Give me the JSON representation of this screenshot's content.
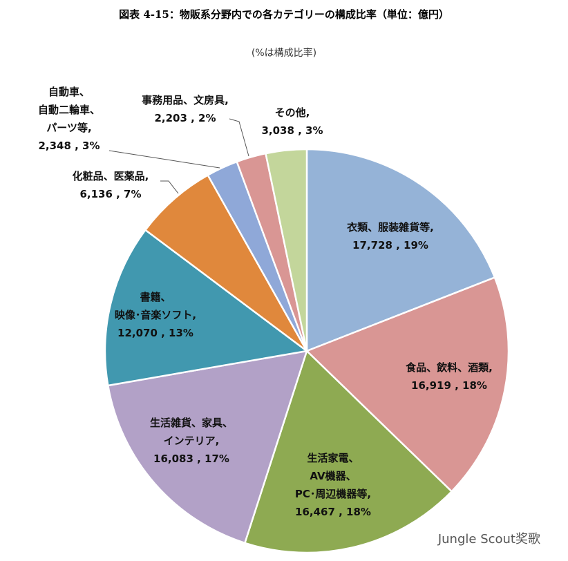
{
  "chart_data": {
    "type": "pie",
    "title": "図表 4-15：物販系分野内での各カテゴリーの構成比率（単位：億円）",
    "subtitle": "(%は構成比率)",
    "watermark": "Jungle Scout奖歌",
    "categories": [
      "衣類、服装雑貨等,",
      "食品、飲料、酒類,",
      "生活家電、\nAV機器、\nPC･周辺機器等,",
      "生活雑貨、家具、\nインテリア,",
      "書籍、\n映像･音楽ソフト,",
      "化粧品、医薬品,",
      "自動車、\n自動二輪車、\nパーツ等,",
      "事務用品、文房具,",
      "その他,"
    ],
    "values": [
      17728,
      16919,
      16467,
      16083,
      12070,
      6136,
      2348,
      2203,
      3038
    ],
    "value_labels": [
      "17,728 , 19%",
      "16,919 , 18%",
      "16,467 , 18%",
      "16,083 , 17%",
      "12,070 , 13%",
      "6,136 , 7%",
      "2,348 , 3%",
      "2,203 , 2%",
      "3,038 , 3%"
    ],
    "colors": [
      "#95b3d7",
      "#d99694",
      "#8eaa52",
      "#b2a1c7",
      "#4198af",
      "#e0883c",
      "#8fa8d8",
      "#d99694",
      "#c3d69b"
    ]
  }
}
